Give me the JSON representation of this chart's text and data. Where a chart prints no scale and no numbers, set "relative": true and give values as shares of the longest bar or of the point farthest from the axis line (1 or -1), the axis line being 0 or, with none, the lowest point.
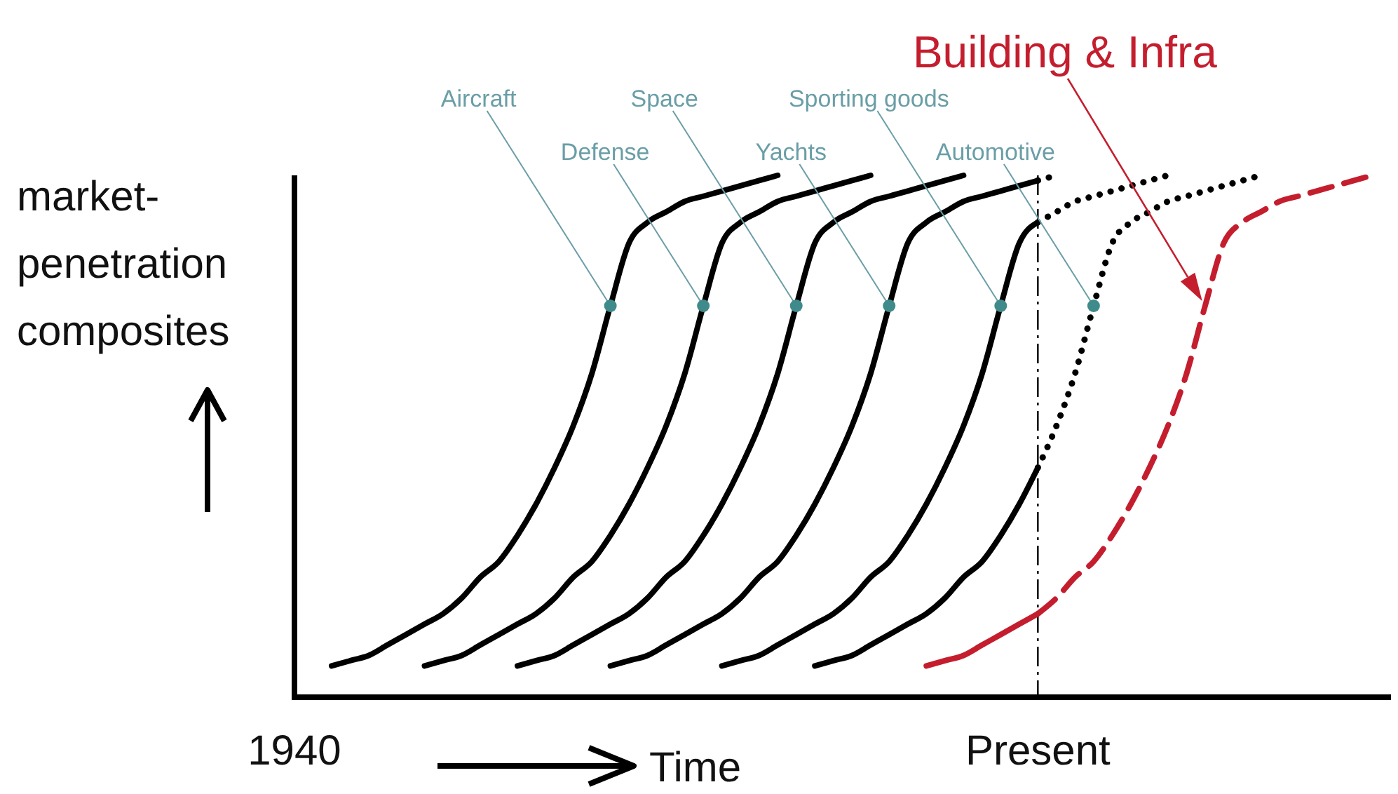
{
  "chart_data": {
    "type": "line",
    "relative": true,
    "marker": "none",
    "line_style": "solid",
    "ylabel": "market-penetration composites",
    "xlabel": "Time",
    "categories": [
      "1940",
      null,
      null,
      null,
      null,
      null,
      null,
      null,
      null,
      null,
      null,
      null,
      null,
      null,
      null,
      null,
      null,
      null,
      null,
      null,
      null,
      null,
      null,
      null,
      null,
      null,
      null,
      null,
      null,
      null,
      null,
      null,
      null,
      null,
      null,
      null,
      null,
      null,
      null,
      null,
      "Present",
      null,
      null,
      null,
      null,
      null,
      null,
      null,
      null,
      null,
      null,
      null,
      null,
      null,
      null,
      null,
      null,
      null,
      null,
      null
    ],
    "ref_lines": [
      {
        "axis": "x",
        "value": "Present",
        "line_style": "dashed",
        "color": "#000000"
      }
    ],
    "series": [
      {
        "name": "Aircraft",
        "color": "#000000",
        "values": [
          null,
          null,
          0.06,
          0.07,
          0.08,
          0.1,
          0.12,
          0.14,
          0.16,
          0.19,
          0.23,
          0.26,
          0.31,
          0.37,
          0.44,
          0.52,
          0.62,
          0.75,
          0.87,
          0.91,
          0.93,
          0.95,
          0.96,
          0.97,
          0.98,
          0.99,
          1,
          null,
          null,
          null,
          null,
          null,
          null,
          null,
          null,
          null,
          null,
          null,
          null,
          null,
          null,
          null,
          null,
          null,
          null,
          null,
          null,
          null,
          null,
          null,
          null,
          null,
          null,
          null,
          null,
          null,
          null,
          null,
          null,
          null
        ]
      },
      {
        "name": "Defense",
        "color": "#000000",
        "values": [
          null,
          null,
          null,
          null,
          null,
          null,
          null,
          0.06,
          0.07,
          0.08,
          0.1,
          0.12,
          0.14,
          0.16,
          0.19,
          0.23,
          0.26,
          0.31,
          0.37,
          0.44,
          0.52,
          0.62,
          0.75,
          0.87,
          0.91,
          0.93,
          0.95,
          0.96,
          0.97,
          0.98,
          0.99,
          1,
          null,
          null,
          null,
          null,
          null,
          null,
          null,
          null,
          null,
          null,
          null,
          null,
          null,
          null,
          null,
          null,
          null,
          null,
          null,
          null,
          null,
          null,
          null,
          null,
          null,
          null,
          null,
          null
        ]
      },
      {
        "name": "Space",
        "color": "#000000",
        "values": [
          null,
          null,
          null,
          null,
          null,
          null,
          null,
          null,
          null,
          null,
          null,
          null,
          0.06,
          0.07,
          0.08,
          0.1,
          0.12,
          0.14,
          0.16,
          0.19,
          0.23,
          0.26,
          0.31,
          0.37,
          0.44,
          0.52,
          0.62,
          0.75,
          0.87,
          0.91,
          0.93,
          0.95,
          0.96,
          0.97,
          0.98,
          0.99,
          1,
          null,
          null,
          null,
          null,
          null,
          null,
          null,
          null,
          null,
          null,
          null,
          null,
          null,
          null,
          null,
          null,
          null,
          null,
          null,
          null,
          null,
          null,
          null
        ]
      },
      {
        "name": "Yachts",
        "color": "#000000",
        "values": [
          null,
          null,
          null,
          null,
          null,
          null,
          null,
          null,
          null,
          null,
          null,
          null,
          null,
          null,
          null,
          null,
          null,
          0.06,
          0.07,
          0.08,
          0.1,
          0.12,
          0.14,
          0.16,
          0.19,
          0.23,
          0.26,
          0.31,
          0.37,
          0.44,
          0.52,
          0.62,
          0.75,
          0.87,
          0.91,
          0.93,
          0.95,
          0.96,
          0.97,
          0.98,
          0.99,
          null,
          null,
          null,
          null,
          null,
          null,
          null,
          null,
          null,
          null,
          null,
          null,
          null,
          null,
          null,
          null,
          null,
          null,
          null
        ]
      },
      {
        "color": "#000000",
        "line_style": "dotted",
        "values": [
          null,
          null,
          null,
          null,
          null,
          null,
          null,
          null,
          null,
          null,
          null,
          null,
          null,
          null,
          null,
          null,
          null,
          null,
          null,
          null,
          null,
          null,
          null,
          null,
          null,
          null,
          null,
          null,
          null,
          null,
          null,
          null,
          null,
          null,
          null,
          null,
          null,
          null,
          null,
          null,
          0.99,
          1,
          null,
          null,
          null,
          null,
          null,
          null,
          null,
          null,
          null,
          null,
          null,
          null,
          null,
          null,
          null,
          null,
          null,
          null
        ]
      },
      {
        "name": "Sporting goods",
        "color": "#000000",
        "values": [
          null,
          null,
          null,
          null,
          null,
          null,
          null,
          null,
          null,
          null,
          null,
          null,
          null,
          null,
          null,
          null,
          null,
          null,
          null,
          null,
          null,
          null,
          null,
          0.06,
          0.07,
          0.08,
          0.1,
          0.12,
          0.14,
          0.16,
          0.19,
          0.23,
          0.26,
          0.31,
          0.37,
          0.44,
          0.52,
          0.62,
          0.75,
          0.87,
          0.91,
          null,
          null,
          null,
          null,
          null,
          null,
          null,
          null,
          null,
          null,
          null,
          null,
          null,
          null,
          null,
          null,
          null,
          null,
          null
        ]
      },
      {
        "color": "#000000",
        "line_style": "dotted",
        "values": [
          null,
          null,
          null,
          null,
          null,
          null,
          null,
          null,
          null,
          null,
          null,
          null,
          null,
          null,
          null,
          null,
          null,
          null,
          null,
          null,
          null,
          null,
          null,
          null,
          null,
          null,
          null,
          null,
          null,
          null,
          null,
          null,
          null,
          null,
          null,
          null,
          null,
          null,
          null,
          null,
          0.91,
          0.93,
          0.95,
          0.96,
          0.97,
          0.98,
          0.99,
          1,
          null,
          null,
          null,
          null,
          null,
          null,
          null,
          null,
          null,
          null,
          null,
          null
        ]
      },
      {
        "color": "#000000",
        "values": [
          null,
          null,
          null,
          null,
          null,
          null,
          null,
          null,
          null,
          null,
          null,
          null,
          null,
          null,
          null,
          null,
          null,
          null,
          null,
          null,
          null,
          null,
          null,
          null,
          null,
          null,
          null,
          null,
          0.06,
          0.07,
          0.08,
          0.1,
          0.12,
          0.14,
          0.16,
          0.19,
          0.23,
          0.26,
          0.31,
          0.37,
          0.44,
          null,
          null,
          null,
          null,
          null,
          null,
          null,
          null,
          null,
          null,
          null,
          null,
          null,
          null,
          null,
          null,
          null,
          null,
          null
        ]
      },
      {
        "name": "Automotive",
        "color": "#000000",
        "line_style": "dotted",
        "values": [
          null,
          null,
          null,
          null,
          null,
          null,
          null,
          null,
          null,
          null,
          null,
          null,
          null,
          null,
          null,
          null,
          null,
          null,
          null,
          null,
          null,
          null,
          null,
          null,
          null,
          null,
          null,
          null,
          null,
          null,
          null,
          null,
          null,
          null,
          null,
          null,
          null,
          null,
          null,
          null,
          0.44,
          0.52,
          0.62,
          0.75,
          0.87,
          0.91,
          0.93,
          0.95,
          0.96,
          0.97,
          0.98,
          0.99,
          1,
          null,
          null,
          null,
          null,
          null,
          null,
          null
        ]
      },
      {
        "color": "#c41e2e",
        "values": [
          null,
          null,
          null,
          null,
          null,
          null,
          null,
          null,
          null,
          null,
          null,
          null,
          null,
          null,
          null,
          null,
          null,
          null,
          null,
          null,
          null,
          null,
          null,
          null,
          null,
          null,
          null,
          null,
          null,
          null,
          null,
          null,
          null,
          null,
          0.06,
          0.07,
          0.08,
          0.1,
          0.12,
          0.14,
          0.16,
          null,
          null,
          null,
          null,
          null,
          null,
          null,
          null,
          null,
          null,
          null,
          null,
          null,
          null,
          null,
          null,
          null,
          null,
          null
        ]
      },
      {
        "name": "Building & Infra",
        "color": "#c41e2e",
        "line_style": "dashed",
        "values": [
          null,
          null,
          null,
          null,
          null,
          null,
          null,
          null,
          null,
          null,
          null,
          null,
          null,
          null,
          null,
          null,
          null,
          null,
          null,
          null,
          null,
          null,
          null,
          null,
          null,
          null,
          null,
          null,
          null,
          null,
          null,
          null,
          null,
          null,
          null,
          null,
          null,
          null,
          null,
          null,
          0.16,
          0.19,
          0.23,
          0.26,
          0.31,
          0.37,
          0.44,
          0.52,
          0.62,
          0.75,
          0.87,
          0.91,
          0.93,
          0.95,
          0.96,
          0.97,
          0.98,
          0.99,
          1,
          null
        ]
      }
    ]
  }
}
